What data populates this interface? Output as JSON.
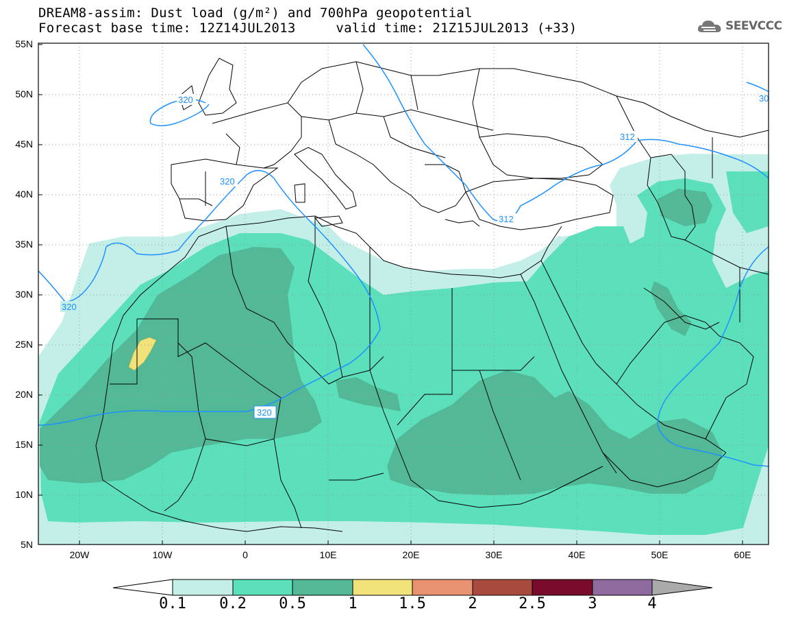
{
  "title": {
    "line1": "DREAM8-assim: Dust load (g/m²) and 700hPa geopotential",
    "line2": "Forecast base time: 12Z14JUL2013     valid time: 21Z15JUL2013 (+33)"
  },
  "logo": {
    "text": "SEEVCCC",
    "icon": "cloud-icon"
  },
  "axes": {
    "lat_labels": [
      "55N",
      "50N",
      "45N",
      "40N",
      "35N",
      "30N",
      "25N",
      "20N",
      "15N",
      "10N",
      "5N"
    ],
    "lon_labels": [
      "20W",
      "10W",
      "0",
      "10E",
      "20E",
      "30E",
      "40E",
      "50E",
      "60E"
    ]
  },
  "contour_labels": {
    "c320_a": "320",
    "c320_b": "320",
    "c320_c": "320",
    "c320_d": "320",
    "c312_a": "312",
    "c312_b": "312",
    "c30_edge": "30"
  },
  "colorbar": {
    "labels": [
      "0.1",
      "0.2",
      "0.5",
      "1",
      "1.5",
      "2",
      "2.5",
      "3",
      "4"
    ],
    "colors": [
      "#c4efe9",
      "#5ce0bc",
      "#52b896",
      "#f2e27a",
      "#e89272",
      "#a84a3e",
      "#780c2a",
      "#8e6a9e"
    ],
    "under_color": "#ffffff",
    "over_color": "#aaaaaa"
  },
  "legend_colors": {
    "level_0_1": "#c4efe9",
    "level_0_2": "#5ce0bc",
    "level_0_5": "#52b896",
    "level_1": "#f2e27a",
    "contour_line": "#1e90ff"
  }
}
